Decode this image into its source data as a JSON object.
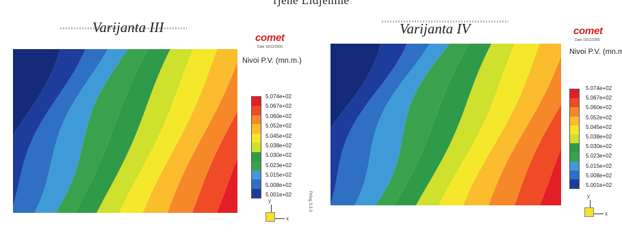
{
  "page": {
    "top_caption": "rjene Lidjenine",
    "side_text": "Prilog 3.3.3"
  },
  "panels": [
    {
      "title": "Varijanta III",
      "brand": "comet",
      "date": "Date 10/12/2000",
      "legend_title": "Nivoi P.V. (mn.m.)",
      "legend_labels": [
        "5.074e+02",
        "5.067e+02",
        "5.060e+02",
        "5.052e+02",
        "5.045e+02",
        "5.038e+02",
        "5.030e+02",
        "5.023e+02",
        "5.015e+02",
        "5.008e+02",
        "5.001e+02"
      ],
      "axis_y": "y",
      "axis_x": "x"
    },
    {
      "title": "Varijanta IV",
      "brand": "comet",
      "date": "Date 10/12/2000",
      "legend_title": "Nivoi P.V. (mn.m.)",
      "legend_labels": [
        "5.074e+02",
        "5.067e+02",
        "5.060e+02",
        "5.052e+02",
        "5.045e+02",
        "5.038e+02",
        "5.030e+02",
        "5.023e+02",
        "5.015e+02",
        "5.008e+02",
        "5.001e+02"
      ],
      "axis_y": "y",
      "axis_x": "x"
    }
  ],
  "colors": {
    "scale": [
      "#e41e26",
      "#ef4b26",
      "#f7882a",
      "#fbbd2d",
      "#f5e82b",
      "#cfe02d",
      "#2f9a48",
      "#3aa24c",
      "#3e9bd8",
      "#2f6fc4",
      "#1d3c9b",
      "#152a78"
    ]
  }
}
